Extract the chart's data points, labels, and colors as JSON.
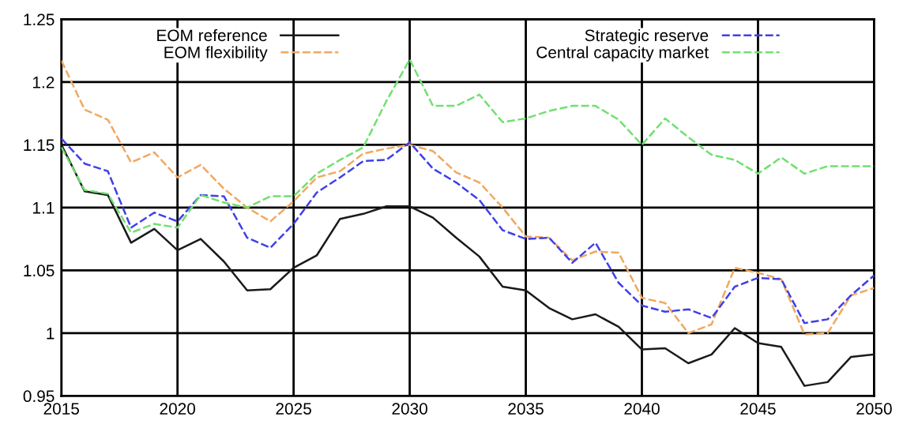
{
  "chart_data": {
    "type": "line",
    "x": [
      2015,
      2016,
      2017,
      2018,
      2019,
      2020,
      2021,
      2022,
      2023,
      2024,
      2025,
      2026,
      2027,
      2028,
      2029,
      2030,
      2031,
      2032,
      2033,
      2034,
      2035,
      2036,
      2037,
      2038,
      2039,
      2040,
      2041,
      2042,
      2043,
      2044,
      2045,
      2046,
      2047,
      2048,
      2049,
      2050
    ],
    "series": [
      {
        "name": "EOM reference",
        "color": "#1a1a1a",
        "line_style": "solid",
        "values": [
          1.15,
          1.113,
          1.11,
          1.072,
          1.083,
          1.066,
          1.075,
          1.057,
          1.034,
          1.035,
          1.052,
          1.062,
          1.091,
          1.095,
          1.101,
          1.101,
          1.092,
          1.076,
          1.061,
          1.037,
          1.034,
          1.02,
          1.011,
          1.015,
          1.005,
          0.987,
          0.988,
          0.976,
          0.983,
          1.004,
          0.992,
          0.989,
          0.958,
          0.961,
          0.981,
          0.983
        ]
      },
      {
        "name": "EOM flexibility",
        "color": "#f0a860",
        "line_style": "dashed",
        "values": [
          1.217,
          1.178,
          1.17,
          1.136,
          1.144,
          1.124,
          1.134,
          1.115,
          1.1,
          1.089,
          1.105,
          1.124,
          1.129,
          1.143,
          1.147,
          1.15,
          1.145,
          1.128,
          1.12,
          1.1,
          1.077,
          1.076,
          1.058,
          1.065,
          1.064,
          1.028,
          1.024,
          1.0,
          1.007,
          1.052,
          1.048,
          1.043,
          0.999,
          1.0,
          1.03,
          1.036
        ]
      },
      {
        "name": "Strategic reserve",
        "color": "#4040e8",
        "line_style": "dashed",
        "values": [
          1.155,
          1.135,
          1.129,
          1.084,
          1.096,
          1.089,
          1.11,
          1.109,
          1.076,
          1.068,
          1.087,
          1.112,
          1.124,
          1.137,
          1.138,
          1.152,
          1.131,
          1.12,
          1.106,
          1.082,
          1.075,
          1.076,
          1.056,
          1.072,
          1.04,
          1.022,
          1.017,
          1.019,
          1.012,
          1.037,
          1.044,
          1.043,
          1.008,
          1.011,
          1.03,
          1.046
        ]
      },
      {
        "name": "Central capacity market",
        "color": "#70e070",
        "line_style": "dashed",
        "values": [
          1.148,
          1.114,
          1.111,
          1.08,
          1.087,
          1.084,
          1.11,
          1.104,
          1.1,
          1.109,
          1.109,
          1.127,
          1.138,
          1.148,
          1.185,
          1.218,
          1.181,
          1.181,
          1.19,
          1.168,
          1.171,
          1.177,
          1.181,
          1.181,
          1.17,
          1.15,
          1.171,
          1.156,
          1.142,
          1.138,
          1.127,
          1.14,
          1.127,
          1.133,
          1.133,
          1.133
        ]
      }
    ],
    "xlim": [
      2015,
      2050
    ],
    "xticks": [
      2015,
      2020,
      2025,
      2030,
      2035,
      2040,
      2045,
      2050
    ],
    "ylim": [
      0.95,
      1.25
    ],
    "yticks": [
      0.95,
      1,
      1.05,
      1.1,
      1.15,
      1.2,
      1.25
    ],
    "grid": true,
    "legend": "top"
  }
}
